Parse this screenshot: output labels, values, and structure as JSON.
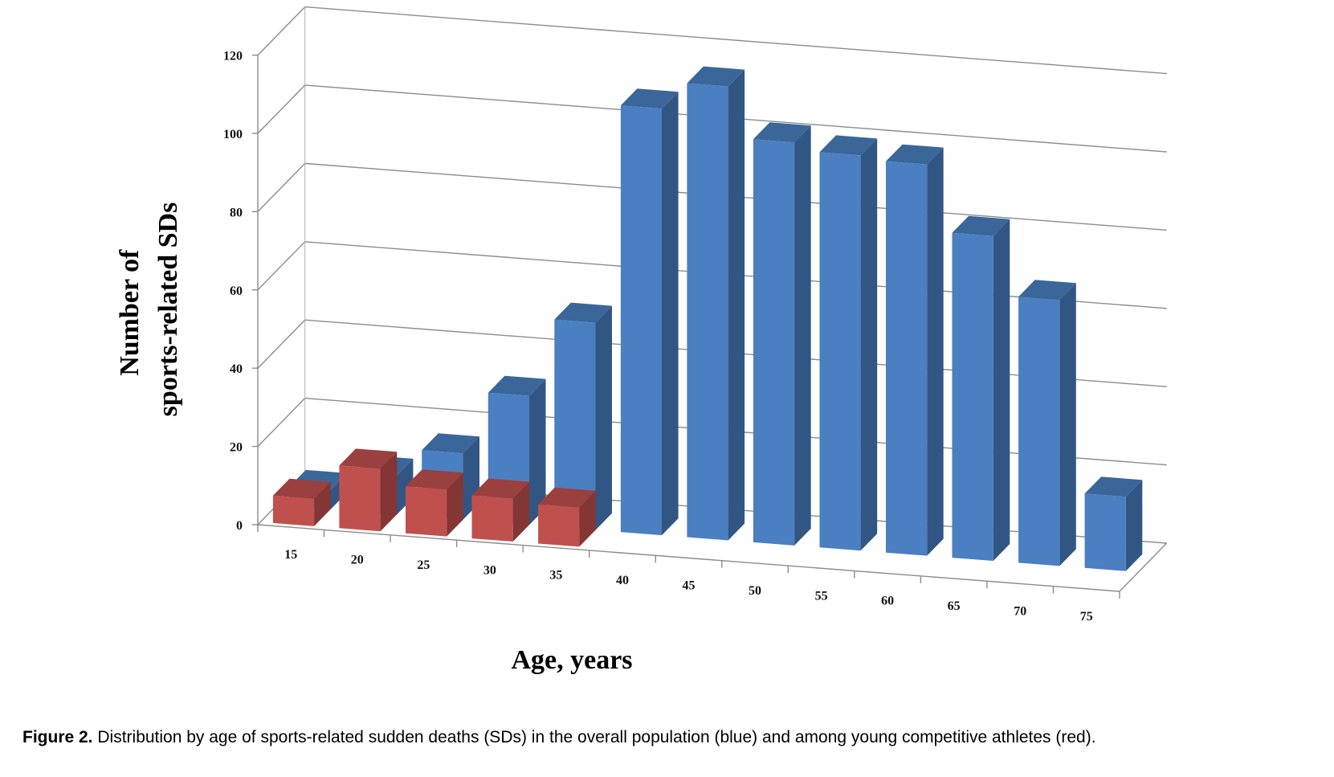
{
  "chart_data": {
    "type": "bar",
    "variant": "3d-stacked-depth",
    "ylabel_lines": [
      "Number of",
      "sports-related SDs"
    ],
    "xlabel": "Age, years",
    "ylim": [
      0,
      120
    ],
    "y_ticks": [
      0,
      20,
      40,
      60,
      80,
      100,
      120
    ],
    "grid": true,
    "categories": [
      "15",
      "20",
      "25",
      "30",
      "35",
      "40",
      "45",
      "50",
      "55",
      "60",
      "65",
      "70",
      "75"
    ],
    "series": [
      {
        "color": "#4a7fc1",
        "values": [
          5,
          10,
          17,
          33,
          53,
          109,
          116,
          103,
          101,
          100,
          83,
          68,
          19
        ]
      },
      {
        "color": "#c0504d",
        "values": [
          7,
          16,
          12,
          11,
          10,
          null,
          null,
          null,
          null,
          null,
          null,
          null,
          null
        ]
      }
    ]
  },
  "caption": {
    "label": "Figure 2.",
    "text": " Distribution by age of sports-related sudden deaths (SDs) in the overall population (blue) and among young competitive athletes (red)."
  }
}
